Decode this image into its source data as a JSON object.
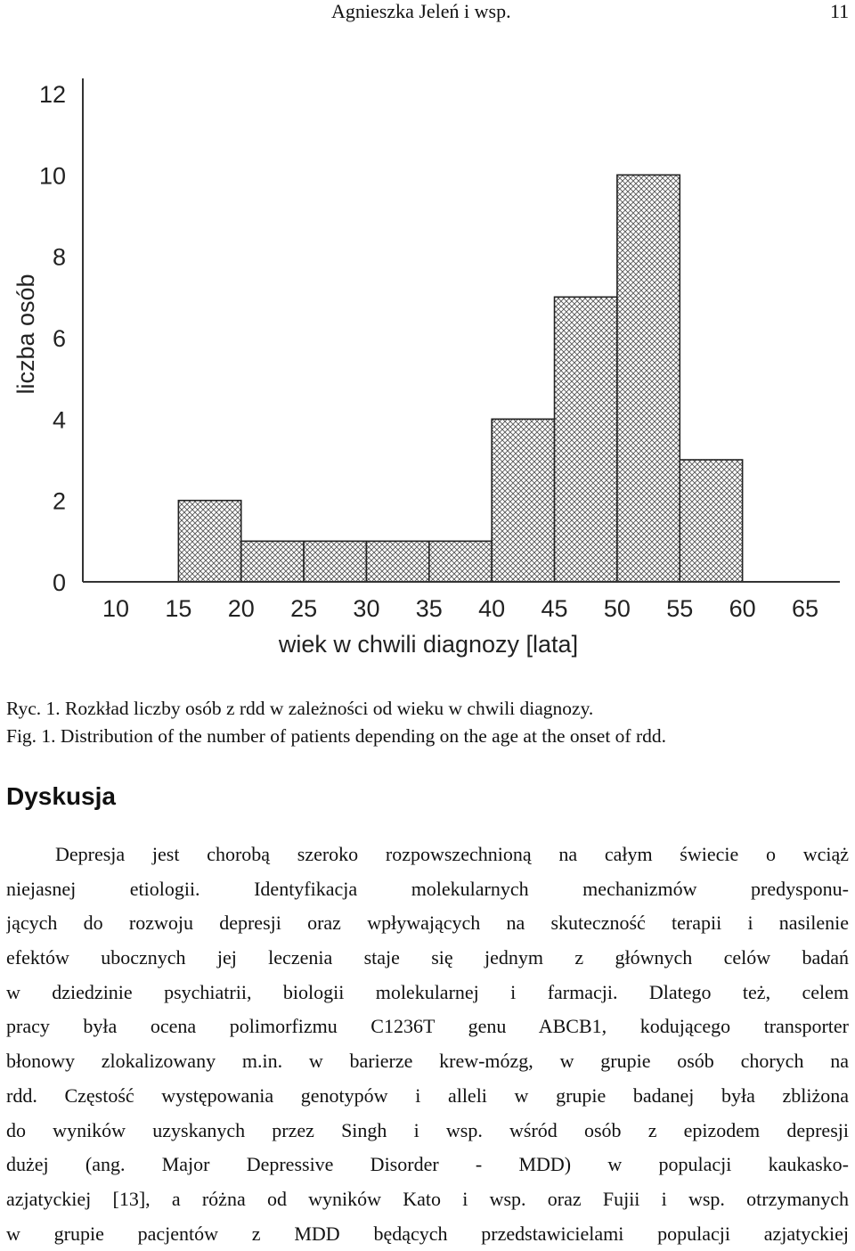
{
  "header": {
    "author": "Agnieszka Jeleń i wsp.",
    "page_number": "11"
  },
  "chart_data": {
    "type": "bar",
    "ylabel": "liczba osób",
    "xlabel": "wiek w chwili diagnozy [lata]",
    "x_ticks": [
      10,
      15,
      20,
      25,
      30,
      35,
      40,
      45,
      50,
      55,
      60,
      65
    ],
    "y_ticks": [
      0,
      2,
      4,
      6,
      8,
      10,
      12
    ],
    "xlim": [
      10,
      65
    ],
    "ylim": [
      0,
      12
    ],
    "bins": [
      {
        "x0": 15,
        "x1": 20,
        "value": 2
      },
      {
        "x0": 20,
        "x1": 25,
        "value": 1
      },
      {
        "x0": 25,
        "x1": 30,
        "value": 1
      },
      {
        "x0": 30,
        "x1": 35,
        "value": 1
      },
      {
        "x0": 35,
        "x1": 40,
        "value": 1
      },
      {
        "x0": 40,
        "x1": 45,
        "value": 4
      },
      {
        "x0": 45,
        "x1": 50,
        "value": 7
      },
      {
        "x0": 50,
        "x1": 55,
        "value": 10
      },
      {
        "x0": 55,
        "x1": 60,
        "value": 3
      }
    ],
    "grid": false,
    "bar_pattern": "crosshatch"
  },
  "captions": {
    "pl": "Ryc. 1. Rozkład liczby osób z rdd w zależności od wieku w chwili diagnozy.",
    "en": "Fig. 1. Distribution of the number of patients depending on the age at the onset of rdd."
  },
  "section": {
    "heading": "Dyskusja"
  },
  "paragraph_lines": [
    "Depresja jest chorobą szeroko rozpowszechnioną na całym świecie o wciąż",
    "niejasnej etiologii. Identyfikacja molekularnych mechanizmów predysponu-",
    "jących do rozwoju depresji oraz wpływających na skuteczność terapii i nasilenie",
    "efektów ubocznych jej leczenia staje się jednym z głównych celów badań",
    "w dziedzinie psychiatrii, biologii molekularnej i farmacji. Dlatego też, celem",
    "pracy była ocena polimorfizmu C1236T genu ABCB1, kodującego transporter",
    "błonowy zlokalizowany m.in. w barierze krew-mózg, w grupie osób chorych na",
    "rdd. Częstość występowania genotypów i alleli w grupie badanej była zbliżona",
    "do wyników uzyskanych przez Singh i wsp. wśród osób z epizodem depresji",
    "dużej (ang. Major Depressive Disorder - MDD) w populacji kaukasko-",
    "azjatyckiej [13], a różna od wyników Kato i wsp. oraz Fujii i wsp. otrzymanych",
    "w grupie pacjentów z MDD będących przedstawicielami populacji azjatyckiej"
  ]
}
